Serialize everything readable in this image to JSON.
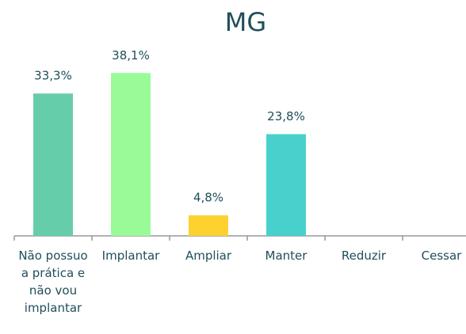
{
  "chart_data": {
    "type": "bar",
    "title": "MG",
    "categories": [
      "Não possuo a prática e não vou implantar",
      "Implantar",
      "Ampliar",
      "Manter",
      "Reduzir",
      "Cessar"
    ],
    "values": [
      33.3,
      38.1,
      4.8,
      23.8,
      0,
      0
    ],
    "value_labels": [
      "33,3%",
      "38,1%",
      "4,8%",
      "23,8%",
      null,
      null
    ],
    "colors": [
      "#66cdaa",
      "#98fb98",
      "#fdd130",
      "#48d1cc",
      null,
      null
    ],
    "ylim": [
      0,
      40
    ],
    "grid": false
  }
}
